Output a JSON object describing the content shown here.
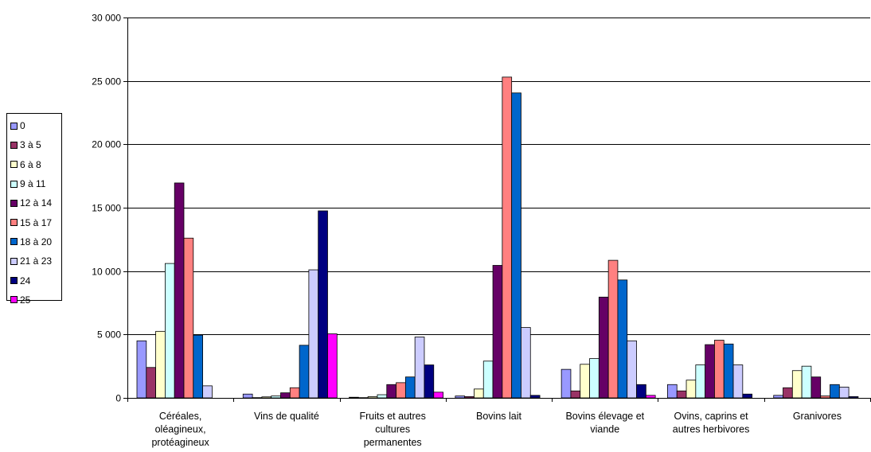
{
  "chart_data": {
    "type": "bar",
    "title": "",
    "xlabel": "",
    "ylabel": "",
    "ylim": [
      0,
      30000
    ],
    "y_ticks": [
      0,
      5000,
      10000,
      15000,
      20000,
      25000,
      30000
    ],
    "y_tick_labels": [
      "0",
      "5 000",
      "10 000",
      "15 000",
      "20 000",
      "25 000",
      "30 000"
    ],
    "grid": true,
    "legend_position": "left",
    "categories": [
      "Céréales, oléagineux, protéagineux",
      "Vins de qualité",
      "Fruits et autres cultures permanentes",
      "Bovins lait",
      "Bovins élevage et viande",
      "Ovins, caprins et autres herbivores",
      "Granivores"
    ],
    "category_label_lines": [
      [
        "Céréales,",
        "oléagineux,",
        "protéagineux"
      ],
      [
        "Vins de qualité"
      ],
      [
        "Fruits et autres",
        "cultures",
        "permanentes"
      ],
      [
        "Bovins lait"
      ],
      [
        "Bovins élevage et",
        "viande"
      ],
      [
        "Ovins, caprins et",
        "autres herbivores"
      ],
      [
        "Granivores"
      ]
    ],
    "series": [
      {
        "name": "0",
        "color": "#9999FF",
        "values": [
          4500,
          300,
          50,
          150,
          2250,
          1050,
          200
        ]
      },
      {
        "name": "3 à 5",
        "color": "#993366",
        "values": [
          2400,
          20,
          20,
          100,
          550,
          550,
          800
        ]
      },
      {
        "name": "6 à 8",
        "color": "#FFFFCC",
        "values": [
          5250,
          80,
          100,
          700,
          2650,
          1400,
          2150
        ]
      },
      {
        "name": "9 à 11",
        "color": "#CCFFFF",
        "values": [
          10600,
          150,
          250,
          2900,
          3100,
          2600,
          2500
        ]
      },
      {
        "name": "12 à 14",
        "color": "#660066",
        "values": [
          16950,
          400,
          1050,
          10450,
          7950,
          4200,
          1650
        ]
      },
      {
        "name": "15 à 17",
        "color": "#FF8080",
        "values": [
          12600,
          800,
          1200,
          25300,
          10850,
          4550,
          150
        ]
      },
      {
        "name": "18 à 20",
        "color": "#0066CC",
        "values": [
          4950,
          4150,
          1650,
          24050,
          9300,
          4250,
          1050
        ]
      },
      {
        "name": "21 à 23",
        "color": "#CCCCFF",
        "values": [
          950,
          10100,
          4800,
          5550,
          4500,
          2600,
          850
        ]
      },
      {
        "name": "24",
        "color": "#000080",
        "values": [
          0,
          14750,
          2600,
          200,
          1050,
          300,
          100
        ]
      },
      {
        "name": "25",
        "color": "#FF00FF",
        "values": [
          0,
          5050,
          450,
          0,
          200,
          0,
          0
        ]
      }
    ]
  }
}
